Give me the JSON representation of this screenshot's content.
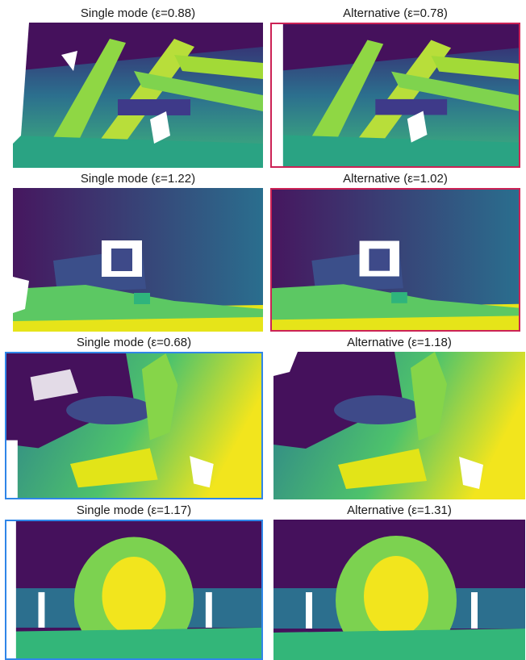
{
  "figure": {
    "rows": [
      {
        "left": {
          "title": "Single mode (ε=0.88)",
          "highlight": "none"
        },
        "right": {
          "title": "Alternative (ε=0.78)",
          "highlight": "red"
        }
      },
      {
        "left": {
          "title": "Single mode (ε=1.22)",
          "highlight": "none"
        },
        "right": {
          "title": "Alternative (ε=1.02)",
          "highlight": "red"
        }
      },
      {
        "left": {
          "title": "Single mode (ε=0.68)",
          "highlight": "blue"
        },
        "right": {
          "title": "Alternative (ε=1.18)",
          "highlight": "none"
        }
      },
      {
        "left": {
          "title": "Single mode (ε=1.17)",
          "highlight": "blue"
        },
        "right": {
          "title": "Alternative (ε=1.31)",
          "highlight": "none"
        }
      }
    ],
    "colors": {
      "highlight_red": "#cc2255",
      "highlight_blue": "#2f86e8",
      "colormap": [
        "#440154",
        "#3b528b",
        "#21908d",
        "#5dc963",
        "#fde725"
      ]
    }
  }
}
